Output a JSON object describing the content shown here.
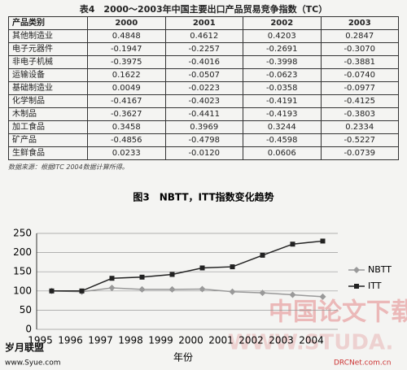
{
  "table": {
    "title": "表4　2000～2003年中国主要出口产品贸易竞争指数（TC）",
    "rows": [
      [
        "产品类别",
        "2000",
        "2001",
        "2002",
        "2003"
      ],
      [
        "其他制造业",
        "0.4848",
        "0.4612",
        "0.4203",
        "0.2847"
      ],
      [
        "电子元器件",
        "-0.1947",
        "-0.2257",
        "-0.2691",
        "-0.3070"
      ],
      [
        "非电子机械",
        "-0.3975",
        "-0.4016",
        "-0.3998",
        "-0.3881"
      ],
      [
        "运输设备",
        "0.1622",
        "-0.0507",
        "-0.0623",
        "-0.0740"
      ],
      [
        "基础制造业",
        "0.0049",
        "-0.0223",
        "-0.0358",
        "-0.0977"
      ],
      [
        "化学制品",
        "-0.4167",
        "-0.4023",
        "-0.4191",
        "-0.4125"
      ],
      [
        "木制品",
        "-0.3627",
        "-0.4411",
        "-0.4193",
        "-0.3803"
      ],
      [
        "加工食品",
        "0.3458",
        "0.3969",
        "0.3244",
        "0.2334"
      ],
      [
        "矿产品",
        "-0.4856",
        "-0.4798",
        "-0.4598",
        "-0.5227"
      ],
      [
        "生鲜食品",
        "0.0233",
        "-0.0120",
        "0.0606",
        "-0.0739"
      ]
    ],
    "source": "数据来源：根据ITC 2004数据计算所得。"
  },
  "chart_data": {
    "type": "line",
    "title": "图3　NBTT，ITT指数变化趋势",
    "x_label": "年份",
    "categories": [
      "1995",
      "1996",
      "1997",
      "1998",
      "1999",
      "2000",
      "2001",
      "2002",
      "2003",
      "2004"
    ],
    "series": [
      {
        "name": "NBTT",
        "color": "#999999",
        "marker": "diamond",
        "values": [
          100,
          98,
          108,
          104,
          104,
          105,
          98,
          95,
          90,
          85
        ]
      },
      {
        "name": "ITT",
        "color": "#222222",
        "marker": "square",
        "values": [
          100,
          100,
          133,
          136,
          143,
          160,
          163,
          193,
          222,
          230
        ]
      }
    ],
    "ylim": [
      0,
      250
    ],
    "yticks": [
      0,
      50,
      100,
      150,
      200,
      250
    ],
    "grid": true
  },
  "watermarks": [
    "中国论文下载",
    "WWW.STUDA.",
    "岁月联盟",
    "www.Syue.com",
    "DRCNet.com.cn"
  ]
}
